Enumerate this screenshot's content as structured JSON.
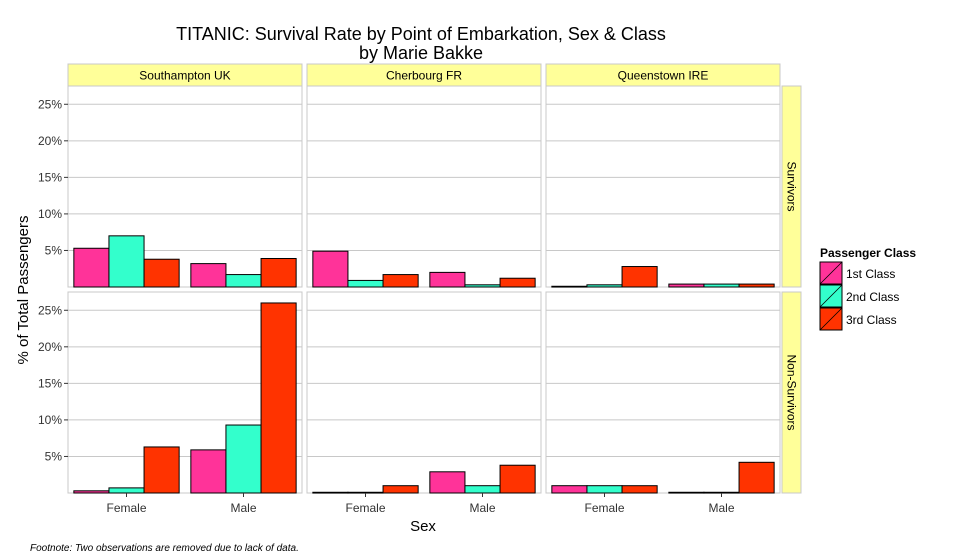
{
  "chart_data": {
    "type": "bar",
    "title": "TITANIC: Survival Rate by Point of Embarkation, Sex & Class",
    "subtitle": "by Marie Bakke",
    "xlabel": "Sex",
    "ylabel": "% of Total Passengers",
    "ylim": [
      0,
      27.5
    ],
    "yticks": [
      5,
      10,
      15,
      20,
      25
    ],
    "ytick_labels": [
      "5%",
      "10%",
      "15%",
      "20%",
      "25%"
    ],
    "categories": [
      "Female",
      "Male"
    ],
    "columns": [
      "Southampton UK",
      "Cherbourg FR",
      "Queenstown IRE"
    ],
    "rows": [
      "Survivors",
      "Non-Survivors"
    ],
    "legend": {
      "title": "Passenger Class",
      "position": "right",
      "items": [
        {
          "label": "1st Class",
          "color": "#ff3399"
        },
        {
          "label": "2nd Class",
          "color": "#33ffcc"
        },
        {
          "label": "3rd Class",
          "color": "#ff3300"
        }
      ]
    },
    "grid": true,
    "panels": [
      {
        "row": "Survivors",
        "column": "Southampton UK",
        "series": [
          {
            "name": "1st Class",
            "values": [
              5.3,
              3.2
            ]
          },
          {
            "name": "2nd Class",
            "values": [
              7.0,
              1.7
            ]
          },
          {
            "name": "3rd Class",
            "values": [
              3.8,
              3.9
            ]
          }
        ]
      },
      {
        "row": "Survivors",
        "column": "Cherbourg FR",
        "series": [
          {
            "name": "1st Class",
            "values": [
              4.9,
              2.0
            ]
          },
          {
            "name": "2nd Class",
            "values": [
              0.9,
              0.3
            ]
          },
          {
            "name": "3rd Class",
            "values": [
              1.7,
              1.2
            ]
          }
        ]
      },
      {
        "row": "Survivors",
        "column": "Queenstown IRE",
        "series": [
          {
            "name": "1st Class",
            "values": [
              0.1,
              0.4
            ]
          },
          {
            "name": "2nd Class",
            "values": [
              0.3,
              0.4
            ]
          },
          {
            "name": "3rd Class",
            "values": [
              2.8,
              0.4
            ]
          }
        ]
      },
      {
        "row": "Non-Survivors",
        "column": "Southampton UK",
        "series": [
          {
            "name": "1st Class",
            "values": [
              0.3,
              5.9
            ]
          },
          {
            "name": "2nd Class",
            "values": [
              0.7,
              9.3
            ]
          },
          {
            "name": "3rd Class",
            "values": [
              6.3,
              26.0
            ]
          }
        ]
      },
      {
        "row": "Non-Survivors",
        "column": "Cherbourg FR",
        "series": [
          {
            "name": "1st Class",
            "values": [
              0.1,
              2.9
            ]
          },
          {
            "name": "2nd Class",
            "values": [
              0.1,
              1.0
            ]
          },
          {
            "name": "3rd Class",
            "values": [
              1.0,
              3.8
            ]
          }
        ]
      },
      {
        "row": "Non-Survivors",
        "column": "Queenstown IRE",
        "series": [
          {
            "name": "1st Class",
            "values": [
              1.0,
              0.1
            ]
          },
          {
            "name": "2nd Class",
            "values": [
              1.0,
              0.1
            ]
          },
          {
            "name": "3rd Class",
            "values": [
              1.0,
              4.2
            ]
          }
        ]
      }
    ],
    "footnote": "Footnote: Two observations are removed due to lack of data."
  }
}
